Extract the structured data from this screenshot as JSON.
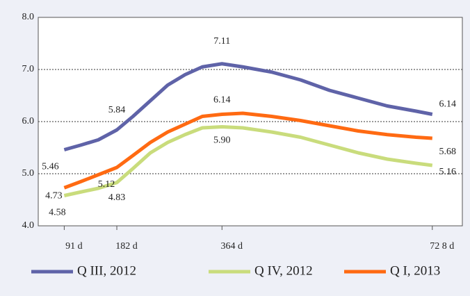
{
  "chart_data": {
    "type": "line",
    "xlim": [
      46,
      780
    ],
    "xticks": [
      {
        "value": 91,
        "label": "91 d"
      },
      {
        "value": 182,
        "label": "182 d"
      },
      {
        "value": 364,
        "label": "364 d"
      },
      {
        "value": 728,
        "label": "72 8 d"
      }
    ],
    "ylim": [
      4,
      8
    ],
    "yticks": [
      {
        "value": 4,
        "label": "4.0"
      },
      {
        "value": 5,
        "label": "5.0"
      },
      {
        "value": 6,
        "label": "6.0"
      },
      {
        "value": 7,
        "label": "7.0"
      },
      {
        "value": 8,
        "label": "8.0"
      }
    ],
    "grid": true,
    "legend": "bottom",
    "x": [
      91,
      120,
      150,
      182,
      210,
      240,
      270,
      300,
      330,
      364,
      400,
      450,
      500,
      550,
      600,
      650,
      700,
      728
    ],
    "series": [
      {
        "name": "Q III, 2012",
        "color": "#5f63a8",
        "values": [
          5.46,
          5.55,
          5.65,
          5.84,
          6.1,
          6.4,
          6.7,
          6.9,
          7.05,
          7.11,
          7.05,
          6.95,
          6.8,
          6.6,
          6.45,
          6.3,
          6.2,
          6.14
        ],
        "value_labels": [
          "5.46",
          null,
          null,
          "5.84",
          null,
          null,
          null,
          null,
          null,
          "7.11",
          null,
          null,
          null,
          null,
          null,
          null,
          null,
          "6.14"
        ]
      },
      {
        "name": "Q IV, 2012",
        "color": "#c9dc7c",
        "values": [
          4.58,
          4.65,
          4.72,
          4.83,
          5.1,
          5.4,
          5.6,
          5.75,
          5.88,
          5.9,
          5.88,
          5.8,
          5.7,
          5.55,
          5.4,
          5.28,
          5.2,
          5.16
        ],
        "value_labels": [
          "4.58",
          null,
          null,
          "4.83",
          null,
          null,
          null,
          null,
          null,
          "5.90",
          null,
          null,
          null,
          null,
          null,
          null,
          null,
          "5.16"
        ]
      },
      {
        "name": "Q I, 2013",
        "color": "#ff6a12",
        "values": [
          4.73,
          4.85,
          4.98,
          5.12,
          5.35,
          5.6,
          5.8,
          5.95,
          6.1,
          6.14,
          6.16,
          6.1,
          6.02,
          5.92,
          5.82,
          5.75,
          5.7,
          5.68
        ],
        "value_labels": [
          "4.73",
          null,
          null,
          "5.12",
          null,
          null,
          null,
          null,
          null,
          "6.14",
          null,
          null,
          null,
          null,
          null,
          null,
          null,
          "5.68"
        ]
      }
    ]
  }
}
